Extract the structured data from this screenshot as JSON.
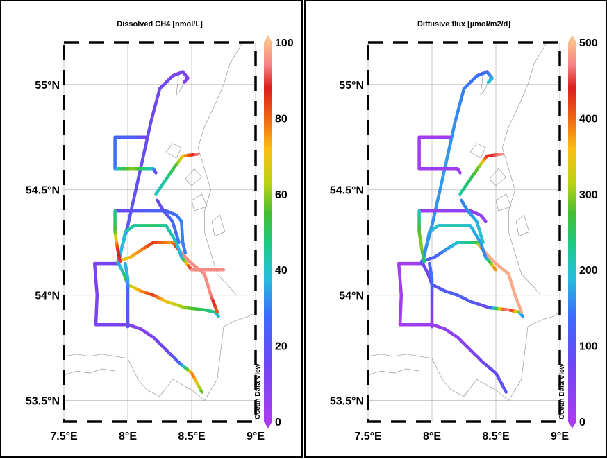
{
  "chart_data": [
    {
      "type": "scatter",
      "title": "Dissolved CH4 [nmol/L]",
      "colorbar": {
        "min": 0,
        "max": 100,
        "ticks": [
          "0",
          "20",
          "40",
          "60",
          "80",
          "100"
        ]
      },
      "xlim": [
        7.5,
        9.0
      ],
      "ylim": [
        53.4,
        55.2
      ],
      "xticks": [
        "7.5°E",
        "8°E",
        "8.5°E",
        "9°E"
      ],
      "yticks": [
        "53.5°N",
        "54°N",
        "54.5°N",
        "55°N"
      ],
      "watermark": "Ocean Data View",
      "tracks": [
        {
          "pts": [
            [
              8.58,
              53.54
            ],
            [
              8.5,
              53.63
            ],
            [
              8.4,
              53.68
            ],
            [
              8.3,
              53.74
            ],
            [
              8.2,
              53.8
            ],
            [
              8.1,
              53.84
            ],
            [
              8.0,
              53.86
            ],
            [
              7.9,
              53.86
            ],
            [
              7.75,
              53.86
            ],
            [
              7.76,
              54.0
            ],
            [
              7.74,
              54.15
            ],
            [
              7.88,
              54.15
            ],
            [
              7.92,
              54.15
            ]
          ],
          "v": [
            55,
            80,
            25,
            15,
            12,
            10,
            10,
            12,
            12,
            12,
            12,
            14,
            18
          ]
        },
        {
          "pts": [
            [
              7.92,
              54.15
            ],
            [
              8.0,
              54.33
            ],
            [
              8.1,
              54.6
            ],
            [
              8.18,
              54.82
            ],
            [
              8.25,
              54.98
            ],
            [
              8.35,
              55.04
            ],
            [
              8.43,
              55.06
            ],
            [
              8.47,
              55.03
            ],
            [
              8.44,
              55.01
            ]
          ],
          "v": [
            22,
            20,
            18,
            16,
            14,
            13,
            12,
            10,
            10
          ]
        },
        {
          "pts": [
            [
              7.92,
              54.16
            ],
            [
              7.97,
              54.1
            ],
            [
              8.0,
              54.05
            ],
            [
              8.1,
              54.02
            ],
            [
              8.2,
              54.0
            ],
            [
              8.3,
              53.97
            ],
            [
              8.45,
              53.94
            ],
            [
              8.6,
              53.93
            ],
            [
              8.68,
              53.92
            ],
            [
              8.71,
              53.9
            ]
          ],
          "v": [
            30,
            45,
            60,
            75,
            85,
            70,
            60,
            50,
            45,
            40
          ]
        },
        {
          "pts": [
            [
              7.92,
              54.16
            ],
            [
              8.02,
              54.18
            ],
            [
              8.12,
              54.22
            ],
            [
              8.2,
              54.25
            ],
            [
              8.35,
              54.25
            ],
            [
              8.42,
              54.2
            ],
            [
              8.5,
              54.15
            ],
            [
              8.6,
              54.1
            ],
            [
              8.65,
              54.0
            ],
            [
              8.7,
              53.92
            ]
          ],
          "v": [
            65,
            72,
            78,
            85,
            75,
            95,
            95,
            95,
            95,
            80
          ]
        },
        {
          "pts": [
            [
              7.93,
              54.16
            ],
            [
              7.98,
              54.3
            ],
            [
              8.05,
              54.33
            ],
            [
              8.2,
              54.33
            ],
            [
              8.3,
              54.33
            ],
            [
              8.38,
              54.25
            ],
            [
              8.42,
              54.18
            ],
            [
              8.5,
              54.12
            ],
            [
              8.6,
              54.12
            ],
            [
              8.75,
              54.12
            ]
          ],
          "v": [
            35,
            40,
            45,
            50,
            45,
            40,
            35,
            95,
            95,
            95
          ]
        },
        {
          "pts": [
            [
              7.9,
              54.4
            ],
            [
              8.0,
              54.4
            ],
            [
              8.15,
              54.4
            ],
            [
              8.3,
              54.4
            ],
            [
              8.38,
              54.38
            ],
            [
              8.42,
              54.35
            ],
            [
              8.43,
              54.25
            ],
            [
              8.45,
              54.2
            ]
          ],
          "v": [
            15,
            18,
            22,
            25,
            28,
            30,
            30,
            30
          ]
        },
        {
          "pts": [
            [
              7.9,
              54.75
            ],
            [
              7.9,
              54.6
            ],
            [
              7.95,
              54.6
            ],
            [
              8.05,
              54.6
            ],
            [
              8.15,
              54.6
            ],
            [
              8.2,
              54.6
            ],
            [
              8.22,
              54.58
            ]
          ],
          "v": [
            28,
            28,
            50,
            60,
            45,
            40,
            15
          ]
        },
        {
          "pts": [
            [
              7.9,
              54.75
            ],
            [
              8.0,
              54.75
            ],
            [
              8.1,
              54.75
            ],
            [
              8.14,
              54.75
            ]
          ],
          "v": [
            25,
            24,
            20,
            12
          ]
        },
        {
          "pts": [
            [
              8.22,
              54.48
            ],
            [
              8.3,
              54.55
            ],
            [
              8.38,
              54.62
            ],
            [
              8.43,
              54.66
            ],
            [
              8.55,
              54.67
            ]
          ],
          "v": [
            40,
            45,
            55,
            70,
            95
          ]
        },
        {
          "pts": [
            [
              8.23,
              54.45
            ],
            [
              8.28,
              54.4
            ],
            [
              8.35,
              54.35
            ],
            [
              8.4,
              54.25
            ]
          ],
          "v": [
            15,
            20,
            25,
            30
          ]
        },
        {
          "pts": [
            [
              7.9,
              54.4
            ],
            [
              7.9,
              54.3
            ],
            [
              7.92,
              54.22
            ],
            [
              7.94,
              54.16
            ]
          ],
          "v": [
            45,
            55,
            85,
            90
          ]
        },
        {
          "pts": [
            [
              7.98,
              54.15
            ],
            [
              8.0,
              54.08
            ],
            [
              8.0,
              54.0
            ],
            [
              8.0,
              53.9
            ],
            [
              8.0,
              53.85
            ]
          ],
          "v": [
            35,
            38,
            25,
            20,
            18
          ]
        }
      ]
    },
    {
      "type": "scatter",
      "title": "Diffusive flux [µmol/m2/d]",
      "colorbar": {
        "min": 0,
        "max": 500,
        "ticks": [
          "0",
          "100",
          "200",
          "300",
          "400",
          "500"
        ]
      },
      "xlim": [
        7.5,
        9.0
      ],
      "ylim": [
        53.4,
        55.2
      ],
      "xticks": [
        "7.5°E",
        "8°E",
        "8.5°E",
        "9°E"
      ],
      "yticks": [
        "53.5°N",
        "54°N",
        "54.5°N",
        "55°N"
      ],
      "watermark": "Ocean Data View",
      "tracks": [
        {
          "pts": [
            [
              8.58,
              53.54
            ],
            [
              8.5,
              53.63
            ],
            [
              8.4,
              53.68
            ],
            [
              8.3,
              53.74
            ],
            [
              8.2,
              53.8
            ],
            [
              8.1,
              53.84
            ],
            [
              8.0,
              53.86
            ],
            [
              7.9,
              53.86
            ],
            [
              7.75,
              53.86
            ],
            [
              7.76,
              54.0
            ],
            [
              7.74,
              54.15
            ],
            [
              7.88,
              54.15
            ],
            [
              7.92,
              54.15
            ]
          ],
          "v": [
            100,
            90,
            70,
            50,
            40,
            30,
            20,
            15,
            10,
            10,
            10,
            15,
            30
          ]
        },
        {
          "pts": [
            [
              7.92,
              54.15
            ],
            [
              8.0,
              54.33
            ],
            [
              8.1,
              54.6
            ],
            [
              8.18,
              54.82
            ],
            [
              8.25,
              54.98
            ],
            [
              8.35,
              55.04
            ],
            [
              8.43,
              55.06
            ],
            [
              8.47,
              55.03
            ],
            [
              8.44,
              55.01
            ]
          ],
          "v": [
            140,
            160,
            170,
            160,
            150,
            140,
            130,
            170,
            200
          ]
        },
        {
          "pts": [
            [
              7.92,
              54.16
            ],
            [
              7.97,
              54.1
            ],
            [
              8.0,
              54.05
            ],
            [
              8.1,
              54.02
            ],
            [
              8.2,
              54.0
            ],
            [
              8.3,
              53.97
            ],
            [
              8.45,
              53.94
            ],
            [
              8.6,
              53.93
            ],
            [
              8.68,
              53.92
            ],
            [
              8.71,
              53.9
            ]
          ],
          "v": [
            60,
            70,
            90,
            110,
            120,
            110,
            80,
            500,
            300,
            150
          ]
        },
        {
          "pts": [
            [
              7.92,
              54.16
            ],
            [
              8.02,
              54.18
            ],
            [
              8.12,
              54.22
            ],
            [
              8.2,
              54.25
            ],
            [
              8.35,
              54.25
            ],
            [
              8.42,
              54.2
            ],
            [
              8.5,
              54.15
            ],
            [
              8.6,
              54.1
            ],
            [
              8.65,
              54.0
            ],
            [
              8.7,
              53.92
            ]
          ],
          "v": [
            90,
            120,
            160,
            200,
            250,
            490,
            490,
            490,
            490,
            490
          ]
        },
        {
          "pts": [
            [
              7.93,
              54.16
            ],
            [
              7.98,
              54.3
            ],
            [
              8.05,
              54.33
            ],
            [
              8.2,
              54.33
            ],
            [
              8.3,
              54.33
            ],
            [
              8.38,
              54.25
            ],
            [
              8.42,
              54.18
            ],
            [
              8.5,
              54.12
            ]
          ],
          "v": [
            150,
            170,
            200,
            210,
            190,
            170,
            150,
            400
          ]
        },
        {
          "pts": [
            [
              7.9,
              54.4
            ],
            [
              8.0,
              54.4
            ],
            [
              8.15,
              54.4
            ],
            [
              8.3,
              54.4
            ],
            [
              8.38,
              54.38
            ],
            [
              8.42,
              54.35
            ]
          ],
          "v": [
            15,
            20,
            30,
            40,
            35,
            30
          ]
        },
        {
          "pts": [
            [
              7.9,
              54.75
            ],
            [
              7.9,
              54.6
            ],
            [
              7.95,
              54.6
            ],
            [
              8.05,
              54.6
            ],
            [
              8.15,
              54.6
            ],
            [
              8.2,
              54.6
            ],
            [
              8.22,
              54.58
            ]
          ],
          "v": [
            10,
            10,
            15,
            20,
            15,
            12,
            10
          ]
        },
        {
          "pts": [
            [
              7.9,
              54.75
            ],
            [
              8.0,
              54.75
            ],
            [
              8.1,
              54.75
            ],
            [
              8.14,
              54.75
            ]
          ],
          "v": [
            10,
            10,
            10,
            8
          ]
        },
        {
          "pts": [
            [
              8.22,
              54.48
            ],
            [
              8.3,
              54.55
            ],
            [
              8.38,
              54.62
            ],
            [
              8.43,
              54.66
            ],
            [
              8.55,
              54.67
            ]
          ],
          "v": [
            220,
            250,
            300,
            420,
            480
          ]
        },
        {
          "pts": [
            [
              8.23,
              54.45
            ],
            [
              8.28,
              54.4
            ],
            [
              8.35,
              54.35
            ],
            [
              8.4,
              54.25
            ]
          ],
          "v": [
            150,
            160,
            180,
            200
          ]
        },
        {
          "pts": [
            [
              7.9,
              54.4
            ],
            [
              7.9,
              54.3
            ],
            [
              7.92,
              54.22
            ],
            [
              7.94,
              54.16
            ]
          ],
          "v": [
            200,
            280,
            300,
            230
          ]
        },
        {
          "pts": [
            [
              7.98,
              54.15
            ],
            [
              8.0,
              54.08
            ],
            [
              8.0,
              54.0
            ],
            [
              8.0,
              53.9
            ],
            [
              8.0,
              53.85
            ]
          ],
          "v": [
            120,
            150,
            90,
            40,
            30
          ]
        }
      ]
    }
  ]
}
